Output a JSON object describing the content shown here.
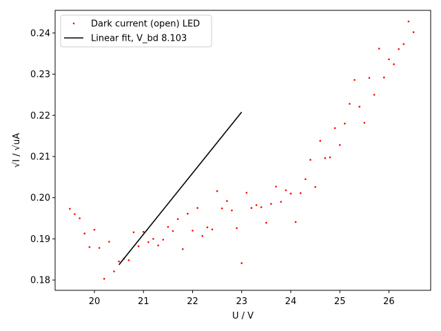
{
  "chart_data": {
    "type": "scatter",
    "xlabel": "U / V",
    "ylabel": "√I / √uA",
    "xlim": [
      19.2,
      26.85
    ],
    "ylim": [
      0.1775,
      0.2455
    ],
    "xticks": [
      20,
      21,
      22,
      23,
      24,
      25,
      26
    ],
    "yticks": [
      0.18,
      0.19,
      0.2,
      0.21,
      0.22,
      0.23,
      0.24
    ],
    "ytick_labels": [
      "0.18",
      "0.19",
      "0.20",
      "0.21",
      "0.22",
      "0.23",
      "0.24"
    ],
    "grid": false,
    "legend_position": "top-left",
    "series": [
      {
        "name": "Dark current (open) LED",
        "kind": "scatter",
        "color": "#ff0000",
        "x": [
          19.5,
          19.6,
          19.7,
          19.8,
          19.9,
          20.0,
          20.1,
          20.2,
          20.3,
          20.4,
          20.5,
          20.6,
          20.7,
          20.8,
          20.9,
          21.0,
          21.1,
          21.2,
          21.3,
          21.4,
          21.5,
          21.6,
          21.7,
          21.8,
          21.9,
          22.0,
          22.1,
          22.2,
          22.3,
          22.4,
          22.5,
          22.6,
          22.7,
          22.8,
          22.9,
          23.0,
          23.1,
          23.2,
          23.3,
          23.4,
          23.5,
          23.6,
          23.7,
          23.8,
          23.9,
          24.0,
          24.1,
          24.2,
          24.3,
          24.4,
          24.5,
          24.6,
          24.7,
          24.8,
          24.9,
          25.0,
          25.1,
          25.2,
          25.3,
          25.4,
          25.5,
          25.6,
          25.7,
          25.8,
          25.9,
          26.0,
          26.1,
          26.2,
          26.3,
          26.4,
          26.5
        ],
        "y": [
          0.1973,
          0.196,
          0.195,
          0.1913,
          0.188,
          0.1922,
          0.1878,
          0.1803,
          0.1893,
          0.1821,
          0.1845,
          0.1852,
          0.1848,
          0.1916,
          0.1882,
          0.1917,
          0.1892,
          0.19,
          0.1884,
          0.1898,
          0.1929,
          0.1919,
          0.1948,
          0.1875,
          0.1961,
          0.192,
          0.1975,
          0.1907,
          0.1928,
          0.1923,
          0.2016,
          0.1974,
          0.1992,
          0.1969,
          0.1926,
          0.1841,
          0.2012,
          0.1975,
          0.1982,
          0.1977,
          0.1939,
          0.1985,
          0.2027,
          0.199,
          0.2018,
          0.201,
          0.1941,
          0.2011,
          0.2045,
          0.2092,
          0.2026,
          0.2138,
          0.2096,
          0.2098,
          0.2169,
          0.2128,
          0.218,
          0.2228,
          0.2286,
          0.2221,
          0.2182,
          0.2291,
          0.225,
          0.2362,
          0.2292,
          0.2336,
          0.2324,
          0.2361,
          0.2373,
          0.2428,
          0.2402
        ]
      },
      {
        "name": "Linear fit, V_bd 8.103",
        "kind": "line",
        "color": "#000000",
        "x": [
          20.5,
          23.0
        ],
        "y": [
          0.1837,
          0.2208
        ]
      }
    ]
  }
}
